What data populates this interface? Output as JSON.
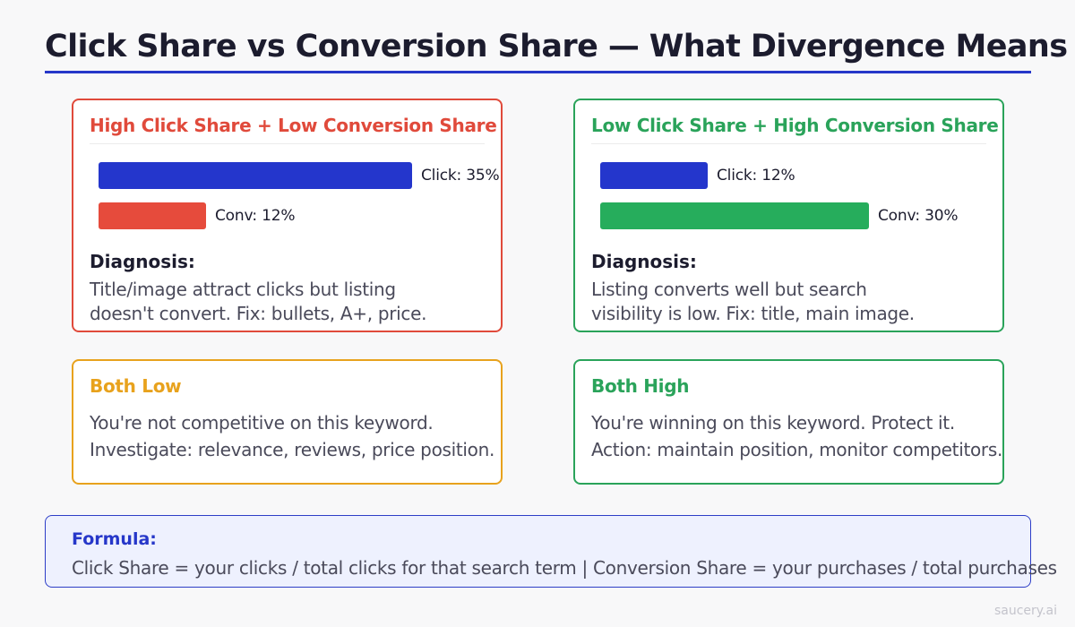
{
  "title": "Click Share vs Conversion Share — What Divergence Means",
  "colors": {
    "accent": "#2637c9",
    "click_bar": "#2436cc",
    "red": "#e04a3b",
    "green": "#2aa35a",
    "amber": "#e8a21d"
  },
  "cards": {
    "high_low": {
      "heading": "High Click Share + Low Conversion Share",
      "click_label": "Click: 35%",
      "click_value": 35,
      "conv_label": "Conv: 12%",
      "conv_value": 12,
      "diagnosis_label": "Diagnosis:",
      "line1": "Title/image attract clicks but listing",
      "line2": "doesn't convert. Fix: bullets, A+, price."
    },
    "low_high": {
      "heading": "Low Click Share + High Conversion Share",
      "click_label": "Click: 12%",
      "click_value": 12,
      "conv_label": "Conv: 30%",
      "conv_value": 30,
      "diagnosis_label": "Diagnosis:",
      "line1": "Listing converts well but search",
      "line2": "visibility is low. Fix: title, main image."
    },
    "both_low": {
      "heading": "Both Low",
      "line1": "You're not competitive on this keyword.",
      "line2": "Investigate: relevance, reviews, price position."
    },
    "both_high": {
      "heading": "Both High",
      "line1": "You're winning on this keyword. Protect it.",
      "line2": "Action: maintain position, monitor competitors."
    }
  },
  "formula": {
    "label": "Formula:",
    "text": "Click Share = your clicks / total clicks for that search term   |   Conversion Share = your purchases / total purchases"
  },
  "watermark": "saucery.ai"
}
